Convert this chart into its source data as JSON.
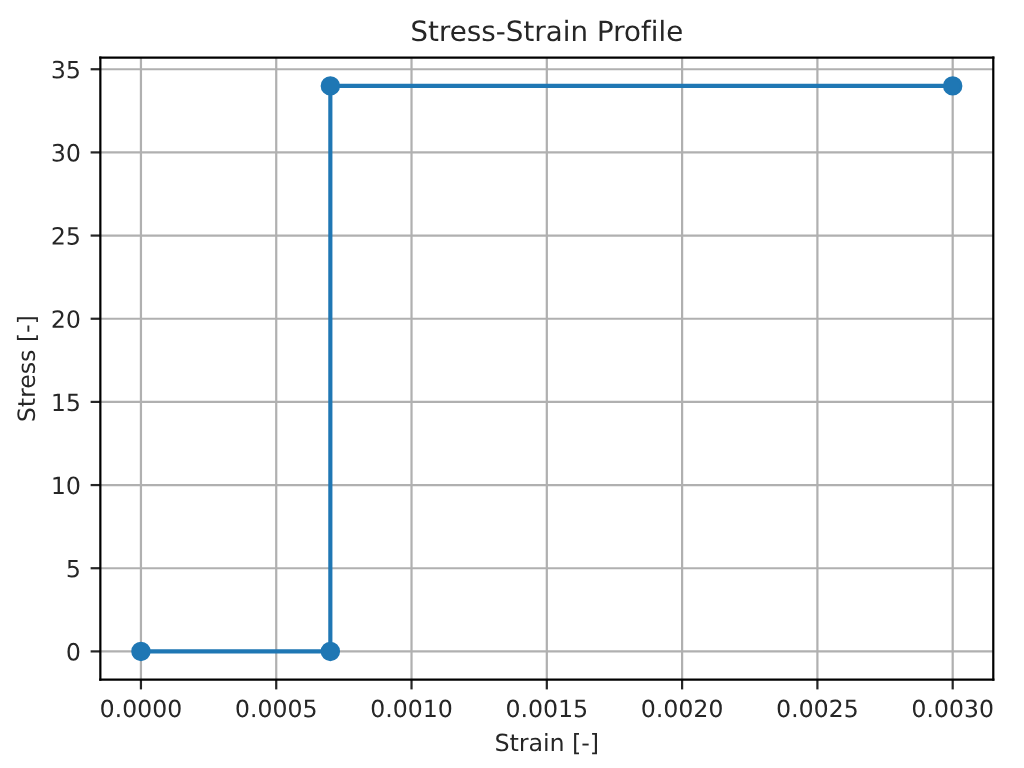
{
  "chart_data": {
    "type": "line",
    "title": "Stress-Strain Profile",
    "xlabel": "Strain [-]",
    "ylabel": "Stress [-]",
    "x": [
      0,
      0.0007,
      0.0007,
      0.003
    ],
    "series": [
      {
        "color": "#1f77b4",
        "values": [
          0,
          0,
          34,
          34
        ]
      }
    ],
    "marker": "circle",
    "line_style": "solid",
    "grid": true,
    "xlim": [
      -0.00015,
      0.00315
    ],
    "ylim": [
      -1.7,
      35.7
    ],
    "xticks": [
      {
        "value": 0,
        "label": "0.0000"
      },
      {
        "value": 0.0005,
        "label": "0.0005"
      },
      {
        "value": 0.001,
        "label": "0.0010"
      },
      {
        "value": 0.0015,
        "label": "0.0015"
      },
      {
        "value": 0.002,
        "label": "0.0020"
      },
      {
        "value": 0.0025,
        "label": "0.0025"
      },
      {
        "value": 0.003,
        "label": "0.0030"
      }
    ],
    "yticks": [
      0,
      5,
      10,
      15,
      20,
      25,
      30,
      35
    ]
  }
}
